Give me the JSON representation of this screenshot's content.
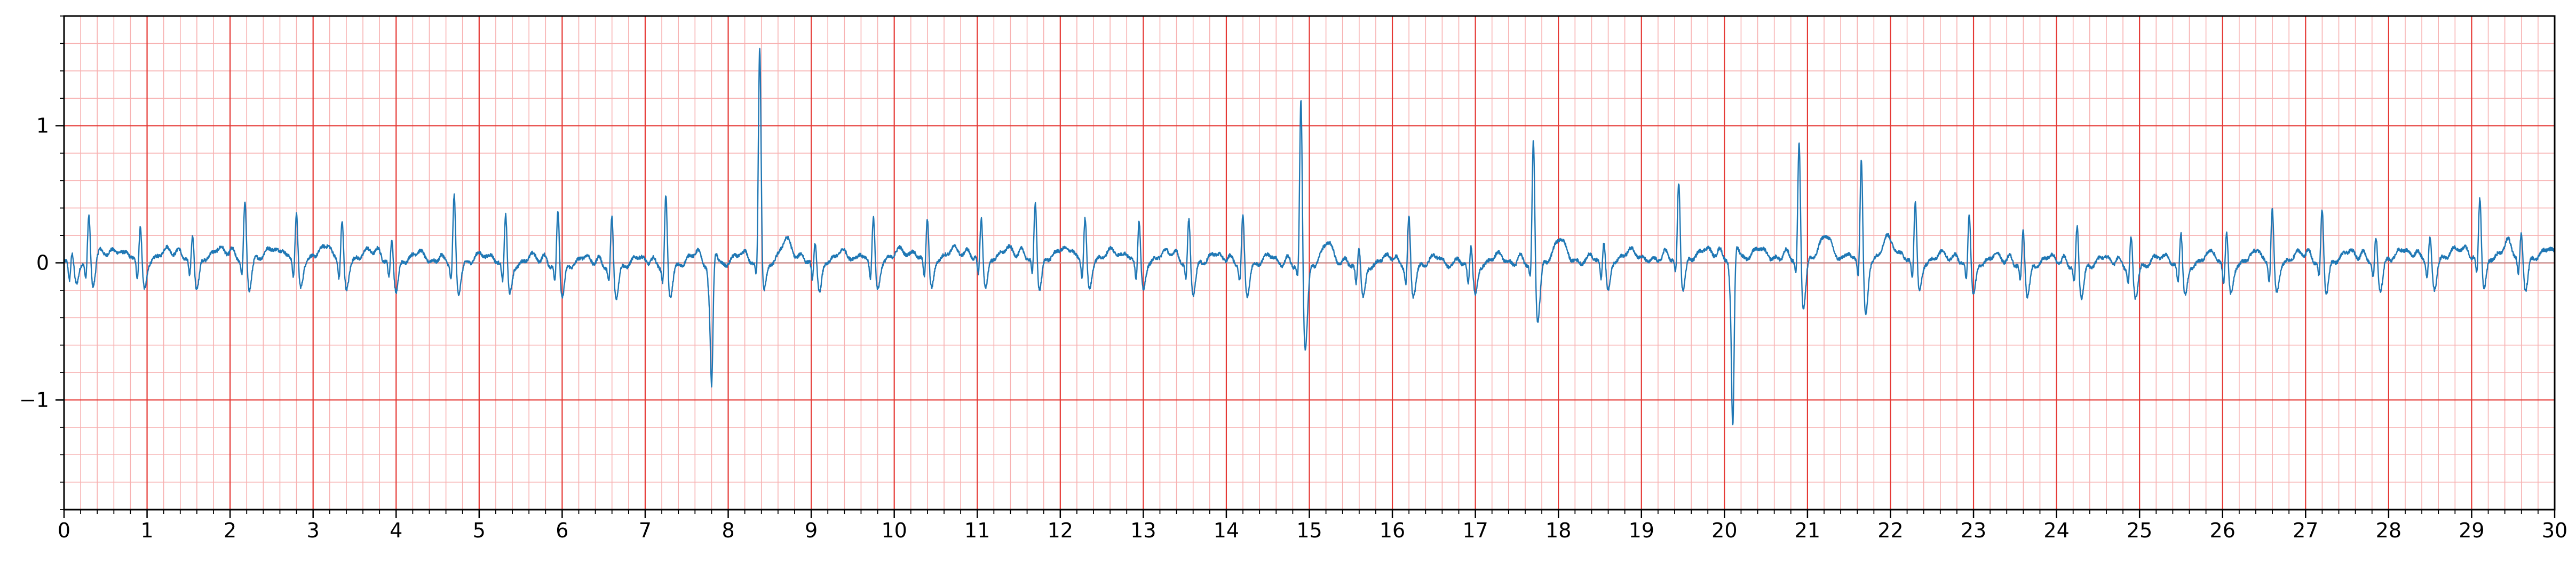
{
  "chart_data": {
    "type": "line",
    "title": "",
    "xlabel": "",
    "ylabel": "",
    "xlim": [
      0,
      30
    ],
    "ylim": [
      -1.8,
      1.8
    ],
    "x_ticks": [
      0,
      1,
      2,
      3,
      4,
      5,
      6,
      7,
      8,
      9,
      10,
      11,
      12,
      13,
      14,
      15,
      16,
      17,
      18,
      19,
      20,
      21,
      22,
      23,
      24,
      25,
      26,
      27,
      28,
      29,
      30
    ],
    "x_tick_labels": [
      "0",
      "1",
      "2",
      "3",
      "4",
      "5",
      "6",
      "7",
      "8",
      "9",
      "10",
      "11",
      "12",
      "13",
      "14",
      "15",
      "16",
      "17",
      "18",
      "19",
      "20",
      "21",
      "22",
      "23",
      "24",
      "25",
      "26",
      "27",
      "28",
      "29",
      "30"
    ],
    "y_ticks": [
      -1,
      0,
      1
    ],
    "y_tick_labels": [
      "−1",
      "0",
      "1"
    ],
    "grid": {
      "major": true,
      "major_x_step": 1,
      "major_y_step": 1,
      "major_color": "#e53935",
      "minor": true,
      "minor_x_step": 0.2,
      "minor_y_step": 0.2,
      "minor_color": "#f7b1b1"
    },
    "line_color": "#1f77b4",
    "beats": [
      {
        "t": 0.1,
        "r": 0.1
      },
      {
        "t": 0.3,
        "r": 0.35
      },
      {
        "t": 0.92,
        "r": 0.3
      },
      {
        "t": 1.55,
        "r": 0.22
      },
      {
        "t": 2.18,
        "r": 0.45
      },
      {
        "t": 2.8,
        "r": 0.38
      },
      {
        "t": 3.35,
        "r": 0.32
      },
      {
        "t": 3.95,
        "r": 0.2
      },
      {
        "t": 4.7,
        "r": 0.53
      },
      {
        "t": 5.32,
        "r": 0.43
      },
      {
        "t": 5.95,
        "r": 0.45
      },
      {
        "t": 6.6,
        "r": 0.4
      },
      {
        "t": 7.25,
        "r": 0.55
      },
      {
        "t": 7.8,
        "r": -0.9
      },
      {
        "t": 8.38,
        "r": 1.63,
        "s": -0.2
      },
      {
        "t": 9.05,
        "r": 0.2
      },
      {
        "t": 9.75,
        "r": 0.37
      },
      {
        "t": 10.4,
        "r": 0.35
      },
      {
        "t": 11.05,
        "r": 0.35
      },
      {
        "t": 11.7,
        "r": 0.45
      },
      {
        "t": 12.3,
        "r": 0.35
      },
      {
        "t": 12.95,
        "r": 0.35
      },
      {
        "t": 13.55,
        "r": 0.35
      },
      {
        "t": 14.2,
        "r": 0.4
      },
      {
        "t": 14.9,
        "r": 1.33,
        "s": -0.6
      },
      {
        "t": 15.6,
        "r": 0.2
      },
      {
        "t": 16.2,
        "r": 0.4
      },
      {
        "t": 16.95,
        "r": 0.2
      },
      {
        "t": 17.7,
        "r": 0.97,
        "s": -0.42
      },
      {
        "t": 18.55,
        "r": 0.2
      },
      {
        "t": 19.45,
        "r": 0.6
      },
      {
        "t": 20.1,
        "r": -1.25
      },
      {
        "t": 20.9,
        "r": 0.9,
        "s": -0.35
      },
      {
        "t": 21.65,
        "r": 0.82,
        "s": -0.4
      },
      {
        "t": 22.3,
        "r": 0.5
      },
      {
        "t": 22.95,
        "r": 0.42
      },
      {
        "t": 23.6,
        "r": 0.3
      },
      {
        "t": 24.25,
        "r": 0.33
      },
      {
        "t": 24.9,
        "r": 0.25
      },
      {
        "t": 25.5,
        "r": 0.3
      },
      {
        "t": 26.05,
        "r": 0.3
      },
      {
        "t": 26.6,
        "r": 0.45
      },
      {
        "t": 27.2,
        "r": 0.43
      },
      {
        "t": 27.85,
        "r": 0.2
      },
      {
        "t": 28.5,
        "r": 0.2
      },
      {
        "t": 29.1,
        "r": 0.5
      },
      {
        "t": 29.6,
        "r": 0.22
      }
    ]
  }
}
